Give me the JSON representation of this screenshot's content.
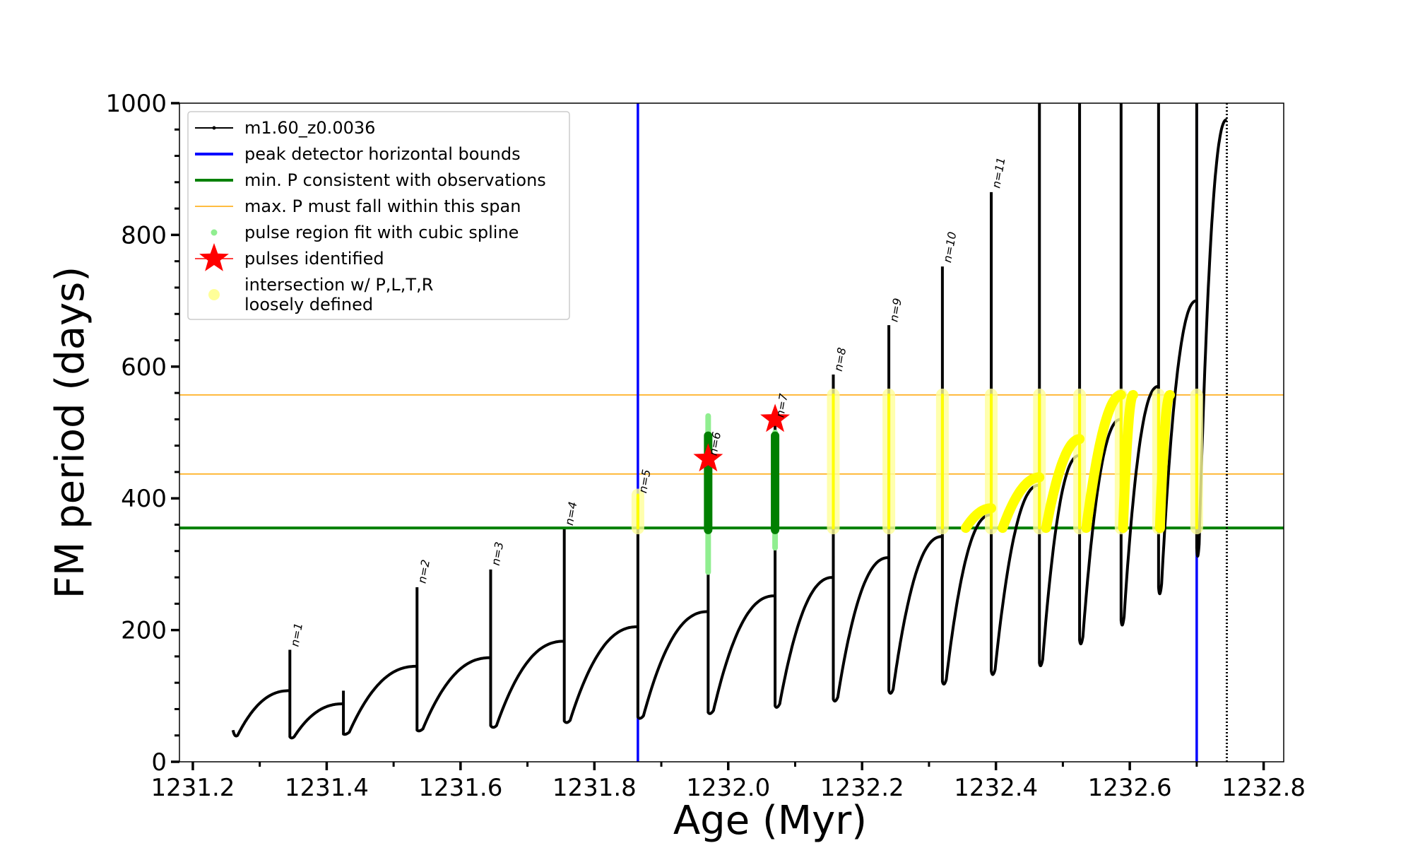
{
  "chart_data": {
    "type": "line",
    "xlabel": "Age (Myr)",
    "ylabel": "FM period (days)",
    "xlim": [
      1231.18,
      1232.83
    ],
    "ylim": [
      0,
      1000
    ],
    "xticks": [
      1231.2,
      1231.4,
      1231.6,
      1231.8,
      1232.0,
      1232.2,
      1232.4,
      1232.6,
      1232.8
    ],
    "xtick_labels": [
      "1231.2",
      "1231.4",
      "1231.6",
      "1231.8",
      "1232.0",
      "1232.2",
      "1232.4",
      "1232.6",
      "1232.8"
    ],
    "yticks": [
      0,
      200,
      400,
      600,
      800,
      1000
    ],
    "ytick_labels": [
      "0",
      "200",
      "400",
      "600",
      "800",
      "1000"
    ],
    "legend_position": "top-left",
    "legend": [
      {
        "label": "m1.60_z0.0036",
        "kind": "line-dot",
        "color": "#000000"
      },
      {
        "label": "peak detector horizontal bounds",
        "kind": "line",
        "color": "#0000ff"
      },
      {
        "label": "min. P consistent with observations",
        "kind": "line",
        "color": "#008000"
      },
      {
        "label": "max. P must fall within this span",
        "kind": "thin-line",
        "color": "#ffa500"
      },
      {
        "label": "pulse region fit with cubic spline",
        "kind": "dot",
        "color": "#90ee90"
      },
      {
        "label": "pulses identified",
        "kind": "star",
        "color": "#ff0000"
      },
      {
        "label": "intersection w/ P,L,T,R",
        "label2": "loosely defined",
        "kind": "big-dot",
        "color": "#ffff99"
      }
    ],
    "vlines": [
      {
        "x": 1231.865,
        "color": "#0000ff"
      },
      {
        "x": 1232.7,
        "color": "#0000ff"
      }
    ],
    "hlines": [
      {
        "y": 355,
        "color": "#008000",
        "width": 4
      },
      {
        "y": 437,
        "color": "#ffa500",
        "width": 1.5
      },
      {
        "y": 557,
        "color": "#ffa500",
        "width": 1.5
      }
    ],
    "series": [
      {
        "name": "m1.60_z0.0036",
        "color": "#000000",
        "pulses": [
          {
            "start": 1231.26,
            "end": 1231.345,
            "base": 40,
            "pre": 108,
            "peak": 48,
            "trough": 48
          },
          {
            "start": 1231.345,
            "end": 1231.425,
            "base": 38,
            "pre": 88,
            "peak": 170,
            "trough": 38
          },
          {
            "start": 1231.425,
            "end": 1231.535,
            "base": 45,
            "pre": 145,
            "peak": 108,
            "trough": 42
          },
          {
            "start": 1231.535,
            "end": 1231.645,
            "base": 50,
            "pre": 158,
            "peak": 265,
            "trough": 48
          },
          {
            "start": 1231.645,
            "end": 1231.755,
            "base": 55,
            "pre": 183,
            "peak": 292,
            "trough": 55
          },
          {
            "start": 1231.755,
            "end": 1231.865,
            "base": 63,
            "pre": 205,
            "peak": 353,
            "trough": 62
          },
          {
            "start": 1231.865,
            "end": 1231.97,
            "base": 70,
            "pre": 228,
            "peak": 400,
            "trough": 68
          },
          {
            "start": 1231.97,
            "end": 1232.07,
            "base": 78,
            "pre": 252,
            "peak": 460,
            "trough": 75
          },
          {
            "start": 1232.07,
            "end": 1232.157,
            "base": 88,
            "pre": 280,
            "peak": 520,
            "trough": 85
          },
          {
            "start": 1232.157,
            "end": 1232.24,
            "base": 98,
            "pre": 310,
            "peak": 588,
            "trough": 95
          },
          {
            "start": 1232.24,
            "end": 1232.32,
            "base": 110,
            "pre": 342,
            "peak": 663,
            "trough": 108
          },
          {
            "start": 1232.32,
            "end": 1232.393,
            "base": 125,
            "pre": 375,
            "peak": 752,
            "trough": 122
          },
          {
            "start": 1232.393,
            "end": 1232.465,
            "base": 140,
            "pre": 420,
            "peak": 865,
            "trough": 138
          },
          {
            "start": 1232.465,
            "end": 1232.525,
            "base": 155,
            "pre": 465,
            "peak": 1000,
            "trough": 150
          },
          {
            "start": 1232.525,
            "end": 1232.587,
            "base": 190,
            "pre": 520,
            "peak": 1000,
            "trough": 185
          },
          {
            "start": 1232.587,
            "end": 1232.643,
            "base": 220,
            "pre": 570,
            "peak": 1000,
            "trough": 215
          },
          {
            "start": 1232.643,
            "end": 1232.7,
            "base": 270,
            "pre": 700,
            "peak": 1000,
            "trough": 265
          },
          {
            "start": 1232.7,
            "end": 1232.745,
            "base": 330,
            "pre": 975,
            "peak": 1000,
            "trough": 325
          }
        ],
        "final_spike": {
          "x": 1232.745,
          "top": 1000,
          "bottom": 0
        }
      }
    ],
    "spline_regions": [
      {
        "x": 1231.97,
        "ymin": 288,
        "ymax": 525,
        "dark_min": 352,
        "dark_max": 495
      },
      {
        "x": 1232.07,
        "ymin": 325,
        "ymax": 500,
        "dark_min": 352,
        "dark_max": 495
      }
    ],
    "pulses_identified": [
      {
        "x": 1231.97,
        "y": 460,
        "label": "n=6"
      },
      {
        "x": 1232.07,
        "y": 520,
        "label": "n=7"
      }
    ],
    "intersections_vertical": [
      {
        "x": 1231.865,
        "ymin": 355,
        "ymax": 405
      },
      {
        "x": 1232.157,
        "ymin": 355,
        "ymax": 557
      },
      {
        "x": 1232.24,
        "ymin": 355,
        "ymax": 557
      },
      {
        "x": 1232.32,
        "ymin": 355,
        "ymax": 557
      },
      {
        "x": 1232.393,
        "ymin": 355,
        "ymax": 557
      },
      {
        "x": 1232.465,
        "ymin": 355,
        "ymax": 557
      },
      {
        "x": 1232.525,
        "ymin": 355,
        "ymax": 557
      },
      {
        "x": 1232.587,
        "ymin": 355,
        "ymax": 557
      },
      {
        "x": 1232.643,
        "ymin": 355,
        "ymax": 557
      },
      {
        "x": 1232.7,
        "ymin": 355,
        "ymax": 557
      }
    ],
    "intersections_arcs": [
      {
        "x0": 1232.355,
        "x1": 1232.393,
        "y0": 355,
        "y1": 385
      },
      {
        "x0": 1232.41,
        "x1": 1232.465,
        "y0": 355,
        "y1": 432
      },
      {
        "x0": 1232.475,
        "x1": 1232.525,
        "y0": 355,
        "y1": 490
      },
      {
        "x0": 1232.535,
        "x1": 1232.587,
        "y0": 355,
        "y1": 557
      },
      {
        "x0": 1232.59,
        "x1": 1232.605,
        "y0": 355,
        "y1": 557
      },
      {
        "x0": 1232.645,
        "x1": 1232.66,
        "y0": 355,
        "y1": 557
      }
    ],
    "annotations": [
      {
        "text": "n=1",
        "x": 1231.345,
        "y": 172
      },
      {
        "text": "n=2",
        "x": 1231.535,
        "y": 268
      },
      {
        "text": "n=3",
        "x": 1231.645,
        "y": 295
      },
      {
        "text": "n=4",
        "x": 1231.755,
        "y": 356
      },
      {
        "text": "n=5",
        "x": 1231.865,
        "y": 405
      },
      {
        "text": "n=6",
        "x": 1231.97,
        "y": 462
      },
      {
        "text": "n=7",
        "x": 1232.07,
        "y": 520
      },
      {
        "text": "n=8",
        "x": 1232.157,
        "y": 590
      },
      {
        "text": "n=9",
        "x": 1232.24,
        "y": 665
      },
      {
        "text": "n=10",
        "x": 1232.32,
        "y": 755
      },
      {
        "text": "n=11",
        "x": 1232.393,
        "y": 868
      }
    ]
  }
}
